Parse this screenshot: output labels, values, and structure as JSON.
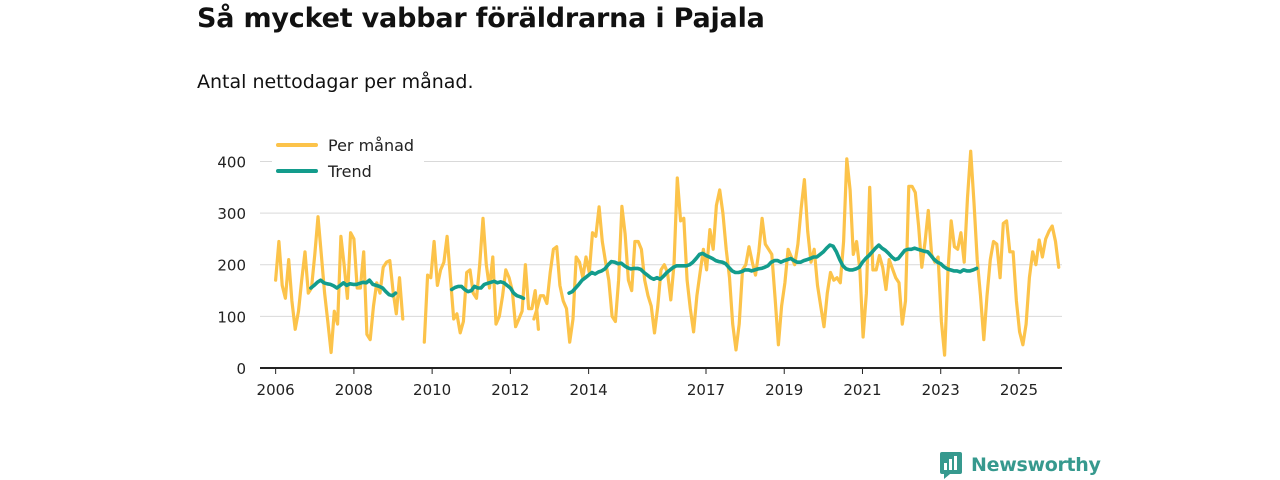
{
  "page": {
    "title": "Så mycket vabbar föräldrarna i Pajala",
    "subtitle": "Antal nettodagar per månad."
  },
  "colors": {
    "monthly": "#fcc34a",
    "trend": "#139c8c",
    "grid": "#d9d9d9",
    "axis": "#222222",
    "brand": "#36998e"
  },
  "brand": {
    "name": "Newsworthy",
    "icon": "newsworthy-logo-icon"
  },
  "chart_data": {
    "type": "line",
    "title": "Så mycket vabbar föräldrarna i Pajala",
    "subtitle": "Antal nettodagar per månad.",
    "xlabel": "",
    "ylabel": "",
    "ylim": [
      0,
      430
    ],
    "xlim": [
      2005.6,
      2026.1
    ],
    "yticks": [
      0,
      100,
      200,
      300,
      400
    ],
    "xticks": [
      2006,
      2008,
      2010,
      2012,
      2014,
      2017,
      2019,
      2021,
      2023,
      2025
    ],
    "grid": true,
    "legend_position": "top-left",
    "series": [
      {
        "name": "Per månad",
        "segments": [
          {
            "start": 2006.0,
            "values": [
              170,
              245,
              160,
              135,
              210,
              130,
              75,
              110,
              170,
              225,
              145,
              155,
              220,
              293,
              220,
              145,
              90,
              30,
              110,
              85,
              255,
              200,
              135,
              262,
              250,
              155,
              155,
              225,
              65,
              55,
              120,
              165,
              145,
              195,
              205,
              208,
              150,
              105,
              175,
              95
            ]
          },
          {
            "start": 2009.8,
            "values": [
              50,
              180,
              175,
              245,
              160,
              190,
              205,
              255,
              175,
              95,
              105,
              68,
              90,
              185,
              190,
              145,
              135,
              200,
              290,
              200,
              155,
              215,
              85,
              100,
              140,
              190,
              175,
              150,
              80,
              95,
              110,
              200,
              115,
              115,
              150,
              75
            ]
          },
          {
            "start": 2012.6,
            "values": [
              95,
              115,
              140,
              140,
              125,
              185,
              230,
              235,
              160,
              130,
              115,
              50,
              95,
              215,
              205,
              175,
              215,
              185,
              262,
              255,
              312,
              245,
              205,
              170,
              100,
              90,
              170,
              313,
              260,
              170,
              150,
              245,
              245,
              230,
              170,
              140,
              120,
              68,
              118,
              190,
              200,
              185,
              132,
              200,
              368,
              285,
              290,
              170,
              115,
              70,
              140,
              185,
              230,
              190,
              268,
              230,
              315,
              345,
              300,
              230,
              175,
              85,
              35,
              85,
              190,
              200,
              235,
              205,
              180,
              225,
              290,
              240,
              230,
              220,
              135,
              45,
              120,
              165,
              230,
              215,
              200,
              240,
              310,
              365,
              265,
              205,
              230,
              160,
              120,
              80,
              145,
              185,
              170,
              175,
              165,
              245,
              405,
              345,
              220,
              245,
              190,
              60,
              145,
              350,
              190,
              190,
              218,
              195,
              152,
              210,
              192,
              175,
              165,
              85,
              130,
              352,
              352,
              340,
              275,
              195,
              245,
              305,
              220,
              205,
              215,
              90,
              25,
              185,
              285,
              235,
              230,
              262,
              205,
              330,
              420,
              320,
              210,
              140,
              55,
              140,
              210,
              245,
              240,
              175,
              280,
              285,
              225,
              225,
              130,
              70,
              45,
              85,
              175,
              225,
              200,
              248,
              215,
              250,
              265,
              275,
              245,
              195
            ]
          }
        ]
      },
      {
        "name": "Trend",
        "segments": [
          {
            "start": 2006.9,
            "values": [
              155,
              160,
              166,
              170,
              165,
              163,
              162,
              159,
              155,
              160,
              165,
              160,
              163,
              162,
              162,
              164,
              166,
              165,
              170,
              162,
              160,
              158,
              155,
              148,
              142,
              140,
              145
            ]
          },
          {
            "start": 2010.5,
            "values": [
              152,
              156,
              158,
              158,
              152,
              148,
              150,
              158,
              155,
              155,
              162,
              164,
              166,
              168,
              165,
              167,
              165,
              160,
              155,
              145,
              140,
              138,
              135
            ]
          },
          {
            "start": 2013.5,
            "values": [
              145,
              148,
              155,
              162,
              170,
              175,
              180,
              185,
              182,
              186,
              188,
              192,
              200,
              206,
              205,
              202,
              203,
              198,
              194,
              192,
              193,
              193,
              191,
              185,
              180,
              175,
              172,
              175,
              172,
              178,
              185,
              190,
              195,
              198,
              198,
              198,
              198,
              200,
              205,
              212,
              220,
              222,
              218,
              215,
              212,
              208,
              206,
              205,
              202,
              195,
              188,
              185,
              185,
              187,
              190,
              190,
              188,
              190,
              192,
              193,
              195,
              198,
              205,
              208,
              208,
              205,
              208,
              210,
              212,
              208,
              205,
              205,
              208,
              210,
              212,
              215,
              215,
              220,
              225,
              232,
              238,
              236,
              225,
              210,
              198,
              192,
              190,
              190,
              192,
              195,
              205,
              212,
              218,
              225,
              232,
              238,
              232,
              228,
              222,
              215,
              210,
              212,
              220,
              228,
              230,
              230,
              232,
              230,
              228,
              226,
              225,
              218,
              210,
              205,
              202,
              196,
              192,
              190,
              188,
              188,
              186,
              190,
              188,
              188,
              190,
              193
            ]
          }
        ]
      }
    ]
  }
}
